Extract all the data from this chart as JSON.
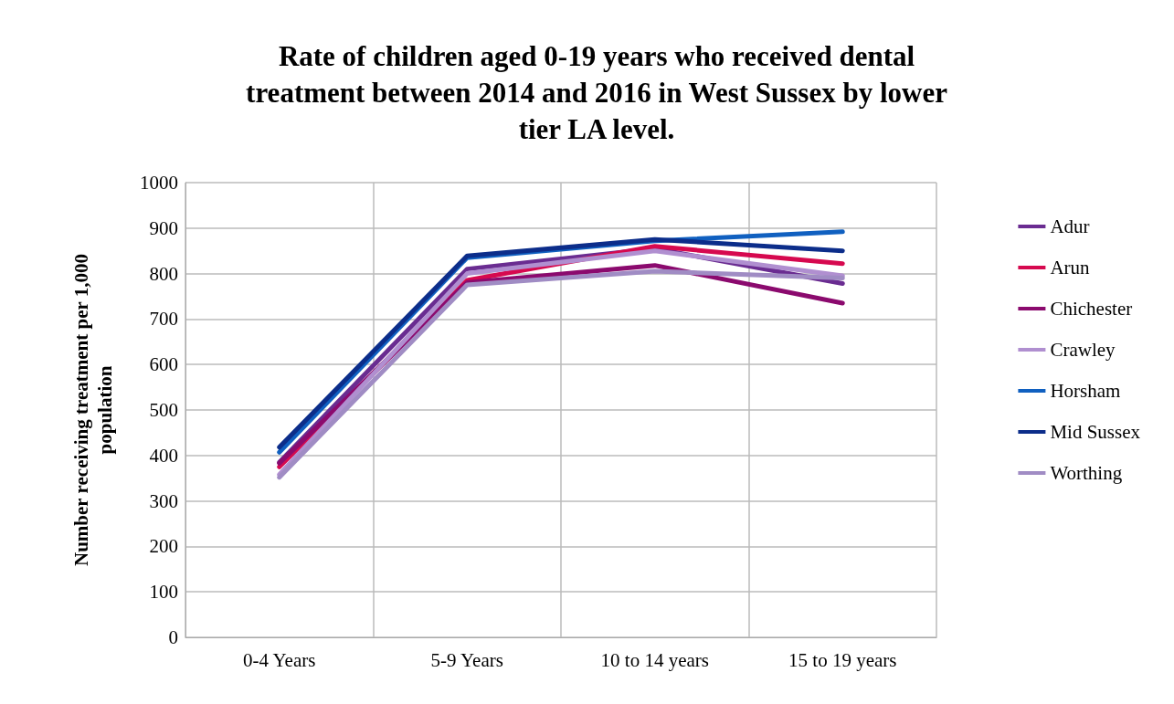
{
  "chart_data": {
    "type": "line",
    "title": "Rate of children aged 0-19 years who received dental\ntreatment between 2014 and 2016 in West Sussex by lower\ntier LA level.",
    "ylabel": "Number receiving treatment per 1,000\npopulation",
    "categories": [
      "0-4 Years",
      "5-9 Years",
      "10 to 14 years",
      "15 to 19 years"
    ],
    "series": [
      {
        "name": "Adur",
        "color": "#6a2c91",
        "values": [
          385,
          810,
          855,
          778
        ]
      },
      {
        "name": "Arun",
        "color": "#d6094f",
        "values": [
          375,
          785,
          860,
          822
        ]
      },
      {
        "name": "Chichester",
        "color": "#8b0a6e",
        "values": [
          383,
          780,
          818,
          735
        ]
      },
      {
        "name": "Crawley",
        "color": "#b08fd0",
        "values": [
          358,
          800,
          850,
          795
        ]
      },
      {
        "name": "Horsham",
        "color": "#1060c0",
        "values": [
          407,
          835,
          872,
          892
        ]
      },
      {
        "name": "Mid Sussex",
        "color": "#0c2d8a",
        "values": [
          418,
          839,
          875,
          850
        ]
      },
      {
        "name": "Worthing",
        "color": "#a08cc4",
        "values": [
          352,
          775,
          805,
          790
        ]
      }
    ],
    "ylim": [
      0,
      1000
    ],
    "yticks": [
      0,
      100,
      200,
      300,
      400,
      500,
      600,
      700,
      800,
      900,
      1000
    ],
    "grid": true,
    "legend": "right",
    "marker": "none",
    "line_style": "solid"
  }
}
